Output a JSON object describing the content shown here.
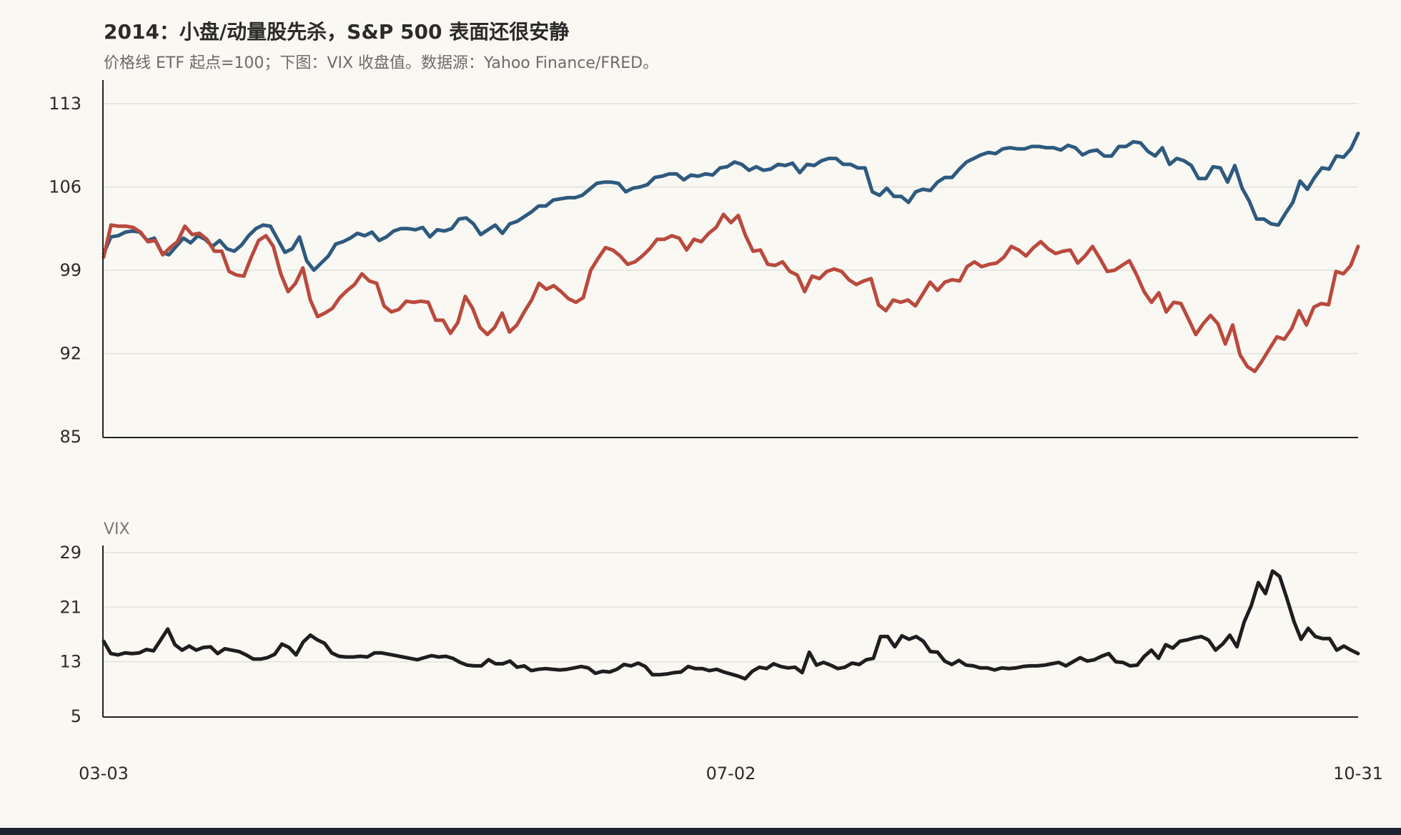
{
  "chart_data": {
    "type": "line",
    "title": "2014：小盘/动量股先杀，S&P 500 表面还很安静",
    "subtitle": "价格线 ETF 起点=100；下图：VIX 收盘值。数据源：Yahoo Finance/FRED。",
    "x_start": "2014-03-03",
    "x_end": "2014-10-31",
    "x_tick_labels": [
      "03-03",
      "07-02",
      "10-31"
    ],
    "panels": [
      {
        "id": "price",
        "ylabel": "",
        "ylim": [
          85,
          113
        ],
        "yticks": [
          85,
          92,
          99,
          106,
          113
        ],
        "grid": true,
        "series": [
          {
            "color": "#2e5a7e",
            "values": [
              100.4,
              101.8,
              101.9,
              102.2,
              102.3,
              102.2,
              101.5,
              101.7,
              100.5,
              100.3,
              101.0,
              101.7,
              101.3,
              101.9,
              101.6,
              101.0,
              101.5,
              100.8,
              100.6,
              101.1,
              101.9,
              102.5,
              102.8,
              102.7,
              101.6,
              100.5,
              100.8,
              101.8,
              99.8,
              99.0,
              99.6,
              100.2,
              101.2,
              101.4,
              101.7,
              102.1,
              101.9,
              102.2,
              101.5,
              101.8,
              102.3,
              102.5,
              102.5,
              102.4,
              102.6,
              101.8,
              102.4,
              102.3,
              102.5,
              103.3,
              103.4,
              102.9,
              102.0,
              102.4,
              102.8,
              102.1,
              102.9,
              103.1,
              103.5,
              103.9,
              104.4,
              104.4,
              104.9,
              105.0,
              105.1,
              105.1,
              105.3,
              105.8,
              106.3,
              106.4,
              106.4,
              106.3,
              105.6,
              105.9,
              106.0,
              106.2,
              106.8,
              106.9,
              107.1,
              107.1,
              106.6,
              107.0,
              106.9,
              107.1,
              107.0,
              107.6,
              107.7,
              108.1,
              107.9,
              107.4,
              107.7,
              107.4,
              107.5,
              107.9,
              107.8,
              108.0,
              107.2,
              107.9,
              107.8,
              108.2,
              108.4,
              108.4,
              107.9,
              107.9,
              107.6,
              107.6,
              105.6,
              105.3,
              105.9,
              105.2,
              105.2,
              104.7,
              105.6,
              105.8,
              105.7,
              106.4,
              106.8,
              106.8,
              107.5,
              108.1,
              108.4,
              108.7,
              108.9,
              108.8,
              109.2,
              109.3,
              109.2,
              109.2,
              109.4,
              109.4,
              109.3,
              109.3,
              109.1,
              109.5,
              109.3,
              108.7,
              109.0,
              109.1,
              108.6,
              108.6,
              109.4,
              109.4,
              109.8,
              109.7,
              109.0,
              108.6,
              109.3,
              107.9,
              108.4,
              108.2,
              107.8,
              106.7,
              106.7,
              107.7,
              107.6,
              106.4,
              107.8,
              105.9,
              104.8,
              103.3,
              103.3,
              102.9,
              102.8,
              103.8,
              104.7,
              106.5,
              105.8,
              106.8,
              107.6,
              107.5,
              108.6,
              108.5,
              109.2,
              110.5
            ]
          },
          {
            "color": "#b94a3e",
            "values": [
              100.1,
              102.8,
              102.7,
              102.7,
              102.6,
              102.2,
              101.4,
              101.5,
              100.3,
              100.9,
              101.4,
              102.7,
              102.0,
              102.1,
              101.6,
              100.6,
              100.6,
              98.9,
              98.6,
              98.5,
              100.1,
              101.5,
              101.9,
              101.0,
              98.7,
              97.2,
              97.9,
              99.2,
              96.5,
              95.1,
              95.4,
              95.8,
              96.7,
              97.3,
              97.8,
              98.7,
              98.1,
              97.9,
              96.0,
              95.5,
              95.7,
              96.4,
              96.3,
              96.4,
              96.3,
              94.8,
              94.8,
              93.7,
              94.6,
              96.8,
              95.8,
              94.2,
              93.6,
              94.2,
              95.4,
              93.8,
              94.4,
              95.5,
              96.5,
              97.9,
              97.4,
              97.7,
              97.2,
              96.6,
              96.3,
              96.7,
              99.0,
              100.0,
              100.9,
              100.7,
              100.2,
              99.5,
              99.7,
              100.2,
              100.8,
              101.6,
              101.6,
              101.9,
              101.7,
              100.7,
              101.6,
              101.4,
              102.1,
              102.6,
              103.7,
              103.0,
              103.6,
              101.9,
              100.6,
              100.7,
              99.5,
              99.4,
              99.7,
              98.9,
              98.6,
              97.2,
              98.5,
              98.3,
              98.9,
              99.1,
              98.9,
              98.2,
              97.8,
              98.1,
              98.3,
              96.1,
              95.6,
              96.5,
              96.3,
              96.5,
              96.0,
              97.0,
              98.0,
              97.3,
              98.0,
              98.2,
              98.1,
              99.3,
              99.7,
              99.3,
              99.5,
              99.6,
              100.1,
              101.0,
              100.7,
              100.2,
              100.9,
              101.4,
              100.8,
              100.4,
              100.6,
              100.7,
              99.6,
              100.2,
              101.0,
              100.0,
              98.9,
              99.0,
              99.4,
              99.8,
              98.6,
              97.2,
              96.3,
              97.1,
              95.5,
              96.3,
              96.2,
              94.9,
              93.6,
              94.5,
              95.2,
              94.5,
              92.8,
              94.4,
              91.9,
              90.9,
              90.5,
              91.4,
              92.4,
              93.4,
              93.2,
              94.1,
              95.6,
              94.4,
              95.9,
              96.2,
              96.1,
              98.9,
              98.7,
              99.4,
              101.0
            ]
          }
        ]
      },
      {
        "id": "vix",
        "ylabel": "VIX",
        "ylim": [
          5,
          29
        ],
        "yticks": [
          5,
          13,
          21,
          29
        ],
        "grid": true,
        "series": [
          {
            "color": "#1e1e1e",
            "values": [
              16.0,
              14.2,
              14.0,
              14.3,
              14.2,
              14.3,
              14.8,
              14.6,
              16.2,
              17.8,
              15.5,
              14.7,
              15.3,
              14.7,
              15.1,
              15.2,
              14.2,
              14.9,
              14.7,
              14.5,
              14.0,
              13.4,
              13.4,
              13.6,
              14.1,
              15.6,
              15.1,
              14.0,
              15.9,
              16.9,
              16.2,
              15.7,
              14.3,
              13.8,
              13.7,
              13.7,
              13.8,
              13.7,
              14.3,
              14.3,
              14.1,
              13.9,
              13.7,
              13.5,
              13.3,
              13.6,
              13.9,
              13.7,
              13.8,
              13.5,
              12.9,
              12.5,
              12.4,
              12.4,
              13.3,
              12.7,
              12.7,
              13.1,
              12.2,
              12.4,
              11.7,
              11.9,
              12.0,
              11.9,
              11.8,
              11.9,
              12.1,
              12.3,
              12.1,
              11.3,
              11.6,
              11.5,
              11.9,
              12.6,
              12.4,
              12.8,
              12.3,
              11.1,
              11.1,
              11.2,
              11.4,
              11.5,
              12.3,
              12.0,
              12.0,
              11.7,
              11.9,
              11.5,
              11.2,
              10.9,
              10.5,
              11.6,
              12.2,
              12.0,
              12.7,
              12.3,
              12.1,
              12.2,
              11.4,
              14.4,
              12.5,
              12.9,
              12.5,
              12.0,
              12.2,
              12.8,
              12.6,
              13.3,
              13.5,
              16.7,
              16.7,
              15.2,
              16.8,
              16.3,
              16.7,
              16.0,
              14.5,
              14.4,
              13.1,
              12.6,
              13.2,
              12.5,
              12.4,
              12.1,
              12.1,
              11.8,
              12.1,
              12.0,
              12.1,
              12.3,
              12.4,
              12.4,
              12.5,
              12.7,
              12.9,
              12.4,
              13.0,
              13.6,
              13.1,
              13.3,
              13.8,
              14.2,
              13.0,
              12.9,
              12.4,
              12.5,
              13.8,
              14.7,
              13.5,
              15.5,
              15.0,
              16.0,
              16.2,
              16.5,
              16.7,
              16.2,
              14.7,
              15.6,
              16.9,
              15.2,
              18.8,
              21.2,
              24.6,
              23.0,
              26.3,
              25.5,
              22.3,
              18.9,
              16.3,
              17.9,
              16.7,
              16.4,
              16.4,
              14.7,
              15.3,
              14.7,
              14.2
            ]
          }
        ]
      }
    ]
  }
}
